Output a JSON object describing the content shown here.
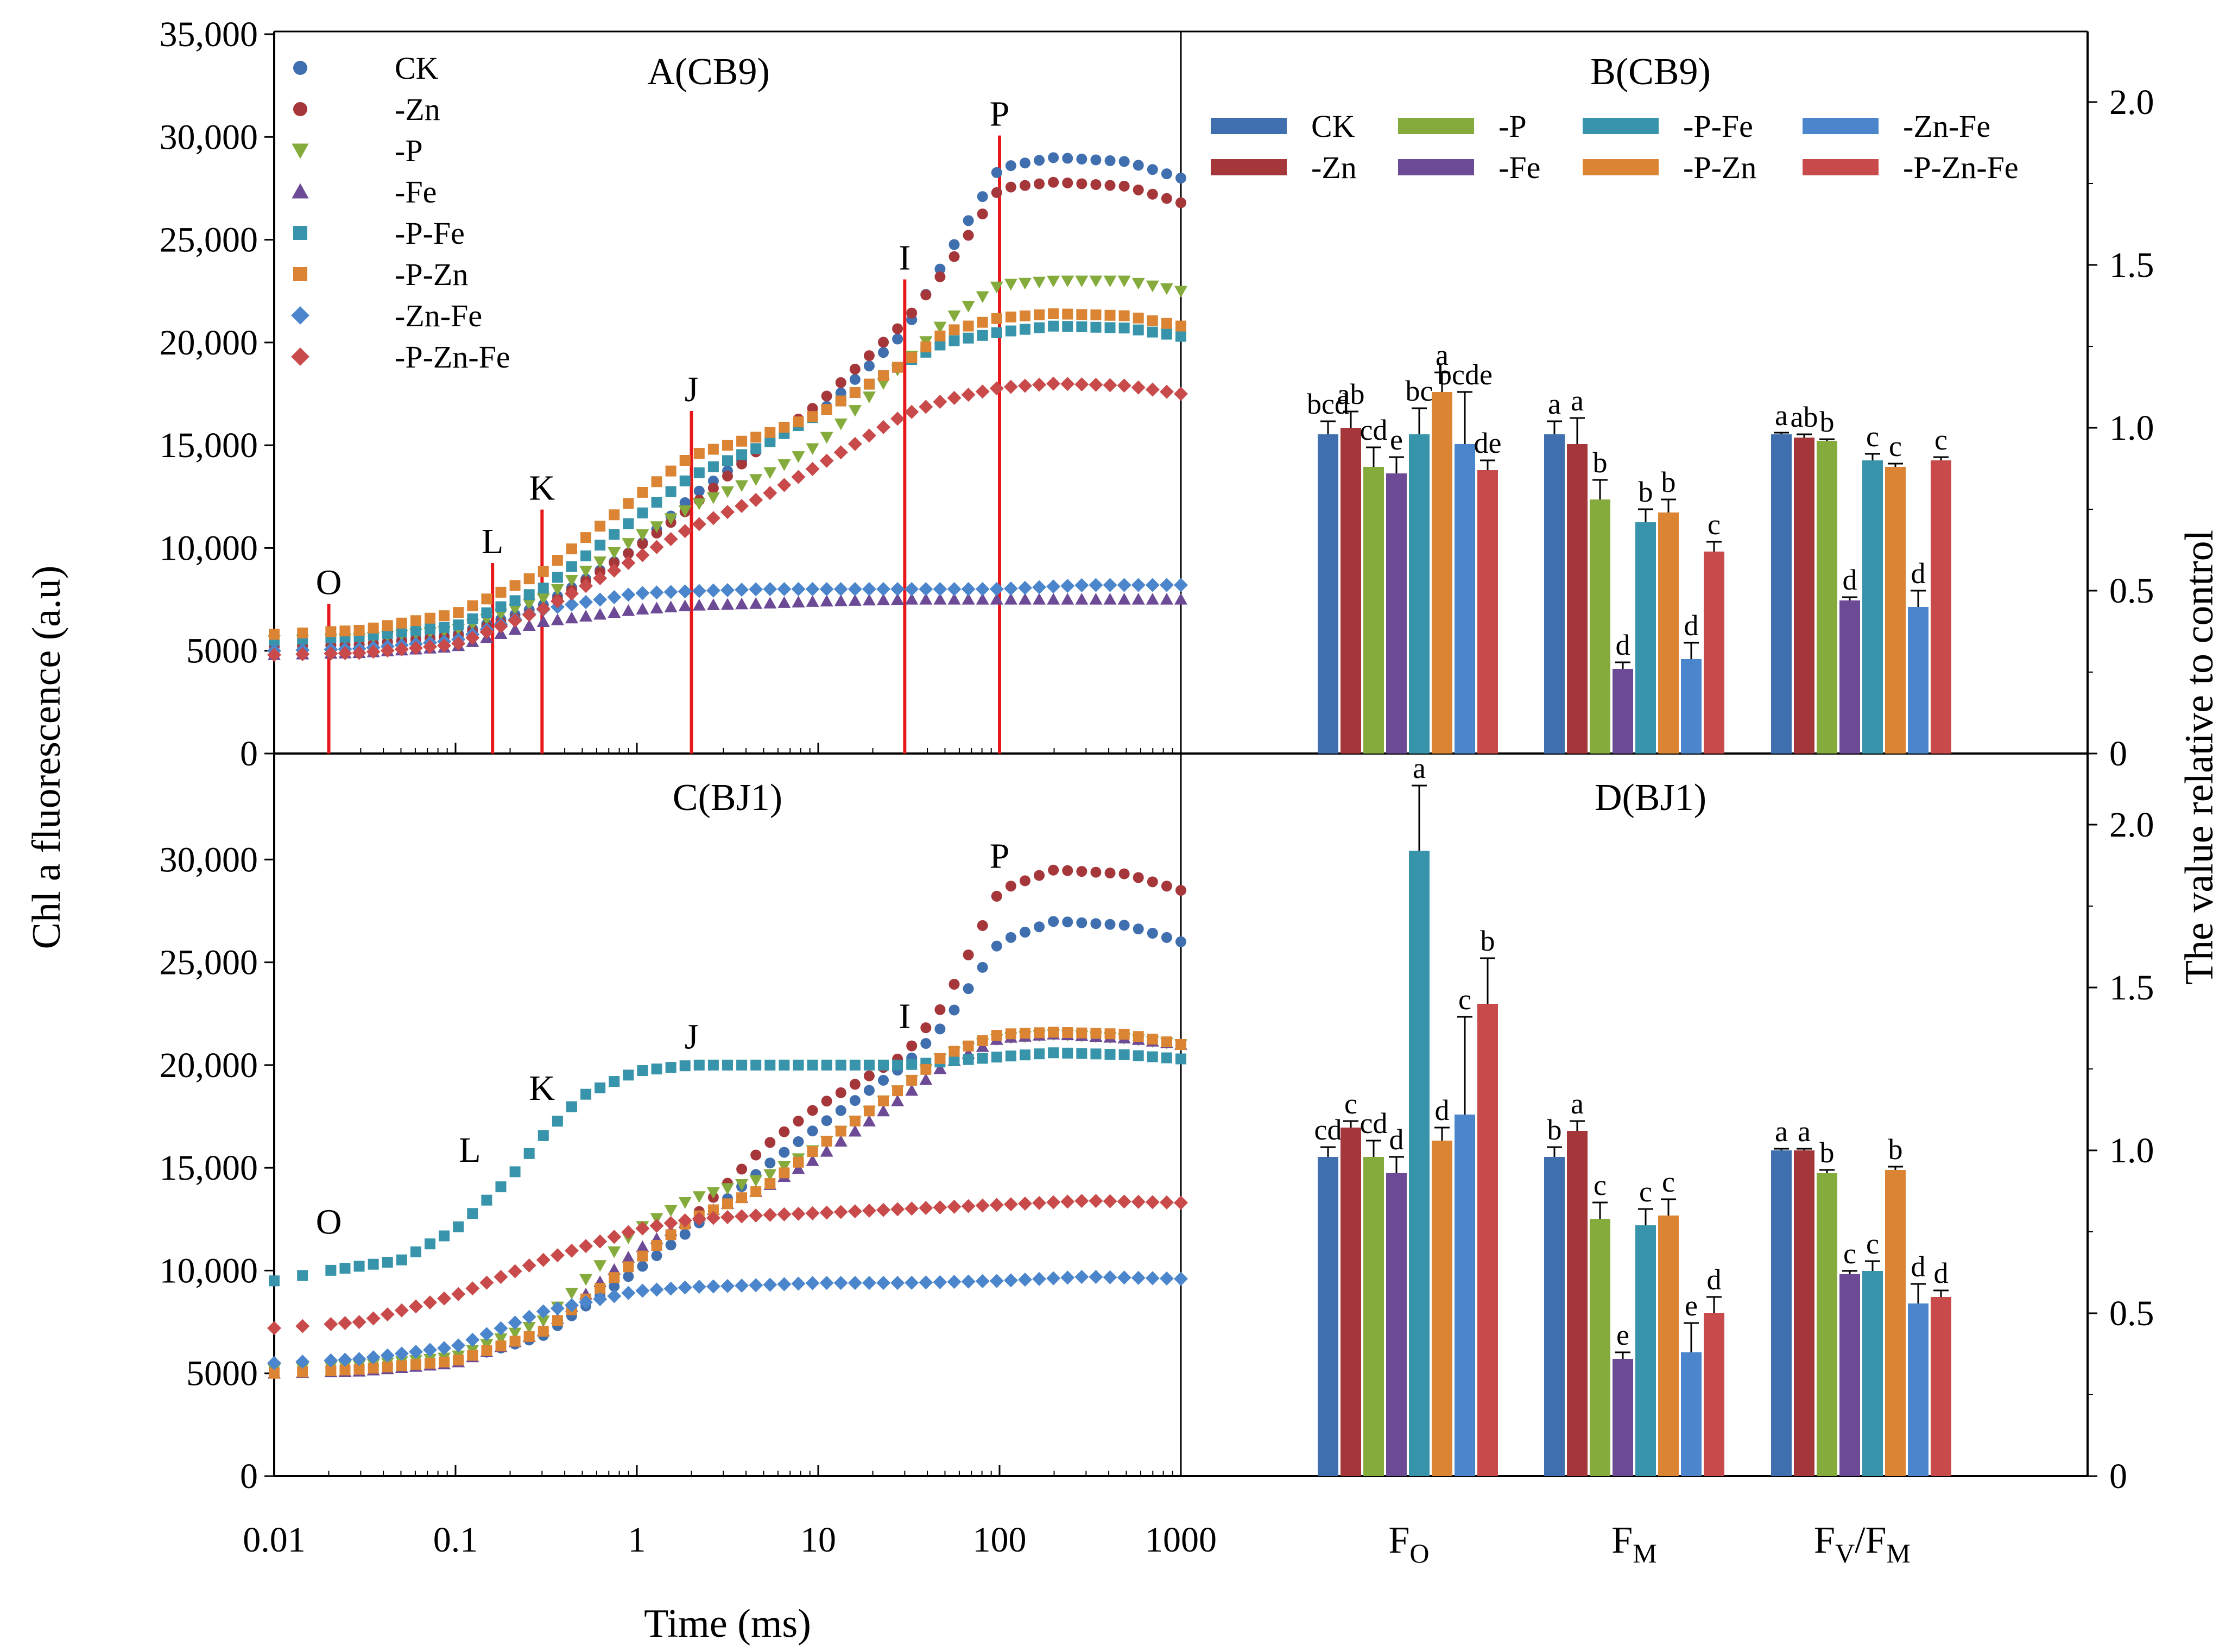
{
  "colors": {
    "CK": "#3f6fae",
    "-Zn": "#a5373a",
    "-P": "#84ab3c",
    "-Fe": "#6c4a96",
    "-P-Fe": "#3894aa",
    "-P-Zn": "#db8534",
    "-Zn-Fe": "#4b86cc",
    "-P-Zn-Fe": "#c94a4a"
  },
  "chart_data": [
    {
      "id": "A",
      "type": "scatter",
      "title": "A(CB9)",
      "xscale": "log",
      "xlim": [
        0.01,
        1000
      ],
      "ylim": [
        0,
        35000
      ],
      "yticks": [
        "0",
        "5000",
        "10,000",
        "15,000",
        "20,000",
        "25,000",
        "30,000",
        "35,000"
      ],
      "xlabel": "",
      "legend": [
        "CK",
        "-Zn",
        "-P",
        "-Fe",
        "-P-Fe",
        "-P-Zn",
        "-Zn-Fe",
        "-P-Zn-Fe"
      ],
      "markers": [
        "circle",
        "circle",
        "triangle-down",
        "triangle-up",
        "square",
        "square",
        "diamond",
        "diamond"
      ],
      "phases": [
        {
          "label": "O",
          "t": 0.02
        },
        {
          "label": "L",
          "t": 0.16
        },
        {
          "label": "K",
          "t": 0.3
        },
        {
          "label": "J",
          "t": 2
        },
        {
          "label": "I",
          "t": 30
        },
        {
          "label": "P",
          "t": 100
        }
      ],
      "phase_label_y": [
        7800,
        9800,
        12400,
        17200,
        23600,
        30600
      ],
      "series": [
        {
          "name": "CK",
          "x": [
            0.01,
            0.03,
            0.1,
            0.3,
            1,
            2,
            5,
            10,
            30,
            50,
            100,
            200,
            500,
            1000
          ],
          "y": [
            5200,
            5300,
            5800,
            7200,
            10000,
            12500,
            15000,
            16500,
            20500,
            24000,
            28500,
            29000,
            28800,
            28000
          ]
        },
        {
          "name": "-Zn",
          "x": [
            0.01,
            0.03,
            0.1,
            0.3,
            1,
            2,
            5,
            10,
            30,
            50,
            100,
            200,
            500,
            1000
          ],
          "y": [
            5200,
            5300,
            5700,
            7000,
            10000,
            12000,
            15000,
            17000,
            21000,
            23500,
            27500,
            27800,
            27600,
            26800
          ]
        },
        {
          "name": "-P",
          "x": [
            0.01,
            0.03,
            0.1,
            0.3,
            1,
            2,
            5,
            10,
            30,
            50,
            100,
            200,
            500,
            1000
          ],
          "y": [
            5500,
            5600,
            6000,
            7500,
            10500,
            12000,
            13500,
            15000,
            19000,
            21000,
            22800,
            23000,
            23000,
            22500
          ]
        },
        {
          "name": "-Fe",
          "x": [
            0.01,
            0.03,
            0.1,
            0.3,
            1,
            2,
            5,
            10,
            30,
            100,
            300,
            1000
          ],
          "y": [
            4800,
            4900,
            5200,
            6400,
            7000,
            7200,
            7300,
            7400,
            7500,
            7500,
            7500,
            7500
          ]
        },
        {
          "name": "-P-Fe",
          "x": [
            0.01,
            0.03,
            0.1,
            0.3,
            1,
            2,
            5,
            10,
            30,
            50,
            100,
            200,
            500,
            1000
          ],
          "y": [
            5500,
            5700,
            6200,
            8000,
            11500,
            13500,
            15000,
            16500,
            19000,
            20000,
            20500,
            20800,
            20700,
            20300
          ]
        },
        {
          "name": "-P-Zn",
          "x": [
            0.01,
            0.03,
            0.1,
            0.3,
            1,
            2,
            5,
            10,
            30,
            50,
            100,
            200,
            500,
            1000
          ],
          "y": [
            5800,
            6000,
            6800,
            8800,
            12500,
            14500,
            15500,
            16500,
            19000,
            20500,
            21200,
            21400,
            21300,
            20800
          ]
        },
        {
          "name": "-Zn-Fe",
          "x": [
            0.01,
            0.03,
            0.1,
            0.3,
            1,
            2,
            5,
            10,
            30,
            100,
            300,
            1000
          ],
          "y": [
            5000,
            5100,
            5500,
            7000,
            7800,
            7900,
            8000,
            8000,
            8000,
            8000,
            8200,
            8200
          ]
        },
        {
          "name": "-P-Zn-Fe",
          "x": [
            0.01,
            0.03,
            0.1,
            0.3,
            1,
            2,
            5,
            10,
            30,
            50,
            100,
            200,
            500,
            1000
          ],
          "y": [
            4800,
            4900,
            5300,
            7000,
            9500,
            11000,
            12500,
            14000,
            16500,
            17200,
            17800,
            18000,
            17900,
            17500
          ]
        }
      ]
    },
    {
      "id": "B",
      "type": "bar",
      "title": "B(CB9)",
      "categories": [
        "FO",
        "FM",
        "FV/FM"
      ],
      "ylim": [
        0,
        2.2
      ],
      "yticks": [
        "0",
        "0.5",
        "1.0",
        "1.5",
        "2.0"
      ],
      "ylabel": "The value relative to control",
      "legend": [
        "CK",
        "-Zn",
        "-P",
        "-Fe",
        "-P-Fe",
        "-P-Zn",
        "-Zn-Fe",
        "-P-Zn-Fe"
      ],
      "series": [
        {
          "name": "CK",
          "values": [
            0.98,
            0.98,
            0.98
          ],
          "errors": [
            0.04,
            0.04,
            0.005
          ],
          "labels": [
            "bcd",
            "a",
            "a"
          ]
        },
        {
          "name": "-Zn",
          "values": [
            1.0,
            0.95,
            0.97
          ],
          "errors": [
            0.05,
            0.08,
            0.01
          ],
          "labels": [
            "ab",
            "a",
            "ab"
          ]
        },
        {
          "name": "-P",
          "values": [
            0.88,
            0.78,
            0.96
          ],
          "errors": [
            0.06,
            0.06,
            0.005
          ],
          "labels": [
            "cd",
            "b",
            "b"
          ]
        },
        {
          "name": "-Fe",
          "values": [
            0.86,
            0.26,
            0.47
          ],
          "errors": [
            0.05,
            0.02,
            0.01
          ],
          "labels": [
            "e",
            "d",
            "d"
          ]
        },
        {
          "name": "-P-Fe",
          "values": [
            0.98,
            0.71,
            0.9
          ],
          "errors": [
            0.08,
            0.04,
            0.02
          ],
          "labels": [
            "bc",
            "b",
            "c"
          ]
        },
        {
          "name": "-P-Zn",
          "values": [
            1.11,
            0.74,
            0.88
          ],
          "errors": [
            0.06,
            0.04,
            0.01
          ],
          "labels": [
            "a",
            "b",
            "c"
          ]
        },
        {
          "name": "-Zn-Fe",
          "values": [
            0.95,
            0.29,
            0.45
          ],
          "errors": [
            0.16,
            0.05,
            0.05
          ],
          "labels": [
            "bcde",
            "d",
            "d"
          ]
        },
        {
          "name": "-P-Zn-Fe",
          "values": [
            0.87,
            0.62,
            0.9
          ],
          "errors": [
            0.03,
            0.03,
            0.01
          ],
          "labels": [
            "de",
            "c",
            "c"
          ]
        }
      ]
    },
    {
      "id": "C",
      "type": "scatter",
      "title": "C(BJ1)",
      "xscale": "log",
      "xlim": [
        0.01,
        1000
      ],
      "ylim": [
        0,
        35000
      ],
      "yticks": [
        "0",
        "5000",
        "10,000",
        "15,000",
        "20,000",
        "25,000",
        "30,000"
      ],
      "xticks": [
        "0.01",
        "0.1",
        "1",
        "10",
        "100",
        "1000"
      ],
      "xlabel": "Time (ms)",
      "ylabel": "Chl a fluorescence (a.u)",
      "phase_labels": [
        {
          "label": "O",
          "t": 0.02,
          "y": 11800
        },
        {
          "label": "L",
          "t": 0.12,
          "y": 15300
        },
        {
          "label": "K",
          "t": 0.3,
          "y": 18300
        },
        {
          "label": "J",
          "t": 2,
          "y": 20800
        },
        {
          "label": "I",
          "t": 30,
          "y": 21800
        },
        {
          "label": "P",
          "t": 100,
          "y": 29600
        }
      ],
      "series": [
        {
          "name": "CK",
          "x": [
            0.01,
            0.03,
            0.1,
            0.3,
            1,
            2,
            5,
            10,
            30,
            50,
            100,
            200,
            500,
            1000
          ],
          "y": [
            5200,
            5300,
            5600,
            6800,
            10000,
            12000,
            15000,
            17000,
            20000,
            22000,
            26000,
            27000,
            26800,
            26000
          ]
        },
        {
          "name": "-Zn",
          "x": [
            0.01,
            0.03,
            0.1,
            0.3,
            1,
            2,
            5,
            10,
            30,
            50,
            100,
            200,
            500,
            1000
          ],
          "y": [
            5200,
            5300,
            5700,
            7000,
            10500,
            12500,
            16000,
            18000,
            20500,
            23000,
            28500,
            29500,
            29300,
            28500
          ]
        },
        {
          "name": "-P",
          "x": [
            0.01,
            0.03,
            0.1,
            0.3,
            1,
            2,
            5,
            10,
            30,
            50,
            100,
            200,
            500,
            1000
          ],
          "y": [
            5200,
            5400,
            5800,
            7500,
            12000,
            13500,
            14500,
            16000,
            19000,
            20500,
            21300,
            21500,
            21300,
            21000
          ]
        },
        {
          "name": "-Fe",
          "x": [
            0.01,
            0.03,
            0.1,
            0.3,
            1,
            2,
            5,
            10,
            30,
            50,
            100,
            200,
            500,
            1000
          ],
          "y": [
            5000,
            5100,
            5500,
            7000,
            11000,
            12500,
            14000,
            15500,
            18500,
            20000,
            21300,
            21500,
            21300,
            21000
          ]
        },
        {
          "name": "-P-Fe",
          "x": [
            0.01,
            0.02,
            0.05,
            0.1,
            0.2,
            0.3,
            0.5,
            1,
            2,
            5,
            10,
            30,
            100,
            200,
            500,
            1000
          ],
          "y": [
            9500,
            10000,
            10500,
            12000,
            14500,
            16500,
            18500,
            19700,
            20000,
            20000,
            20000,
            20000,
            20400,
            20600,
            20500,
            20300
          ]
        },
        {
          "name": "-P-Zn",
          "x": [
            0.01,
            0.03,
            0.1,
            0.3,
            1,
            2,
            5,
            10,
            30,
            50,
            100,
            200,
            500,
            1000
          ],
          "y": [
            5000,
            5200,
            5600,
            7000,
            10500,
            12500,
            14000,
            16000,
            19000,
            20500,
            21500,
            21600,
            21500,
            21000
          ]
        },
        {
          "name": "-Zn-Fe",
          "x": [
            0.01,
            0.03,
            0.1,
            0.3,
            1,
            2,
            5,
            10,
            30,
            100,
            300,
            1000
          ],
          "y": [
            5500,
            5700,
            6300,
            8000,
            9000,
            9200,
            9300,
            9400,
            9400,
            9500,
            9700,
            9600
          ]
        },
        {
          "name": "-P-Zn-Fe",
          "x": [
            0.01,
            0.03,
            0.1,
            0.3,
            1,
            2,
            5,
            10,
            30,
            100,
            300,
            1000
          ],
          "y": [
            7200,
            7500,
            8800,
            10500,
            12000,
            12500,
            12700,
            12800,
            13000,
            13200,
            13400,
            13300
          ]
        }
      ]
    },
    {
      "id": "D",
      "type": "bar",
      "title": "D(BJ1)",
      "categories": [
        "FO",
        "FM",
        "FV/FM"
      ],
      "ylim": [
        0,
        2.2
      ],
      "yticks": [
        "0",
        "0.5",
        "1.0",
        "1.5",
        "2.0"
      ],
      "series": [
        {
          "name": "CK",
          "values": [
            0.98,
            0.98,
            1.0
          ],
          "errors": [
            0.03,
            0.03,
            0.005
          ],
          "labels": [
            "cd",
            "b",
            "a"
          ]
        },
        {
          "name": "-Zn",
          "values": [
            1.07,
            1.06,
            1.0
          ],
          "errors": [
            0.02,
            0.03,
            0.005
          ],
          "labels": [
            "c",
            "a",
            "a"
          ]
        },
        {
          "name": "-P",
          "values": [
            0.98,
            0.79,
            0.93
          ],
          "errors": [
            0.05,
            0.05,
            0.01
          ],
          "labels": [
            "cd",
            "c",
            "b"
          ]
        },
        {
          "name": "-Fe",
          "values": [
            0.93,
            0.36,
            0.62
          ],
          "errors": [
            0.05,
            0.02,
            0.01
          ],
          "labels": [
            "d",
            "e",
            "c"
          ]
        },
        {
          "name": "-P-Fe",
          "values": [
            1.92,
            0.77,
            0.63
          ],
          "errors": [
            0.2,
            0.05,
            0.03
          ],
          "labels": [
            "a",
            "c",
            "c"
          ]
        },
        {
          "name": "-P-Zn",
          "values": [
            1.03,
            0.8,
            0.94
          ],
          "errors": [
            0.04,
            0.05,
            0.01
          ],
          "labels": [
            "d",
            "c",
            "b"
          ]
        },
        {
          "name": "-Zn-Fe",
          "values": [
            1.11,
            0.38,
            0.53
          ],
          "errors": [
            0.3,
            0.09,
            0.06
          ],
          "labels": [
            "c",
            "e",
            "d"
          ]
        },
        {
          "name": "-P-Zn-Fe",
          "values": [
            1.45,
            0.5,
            0.55
          ],
          "errors": [
            0.14,
            0.05,
            0.02
          ],
          "labels": [
            "b",
            "d",
            "d"
          ]
        }
      ]
    }
  ]
}
